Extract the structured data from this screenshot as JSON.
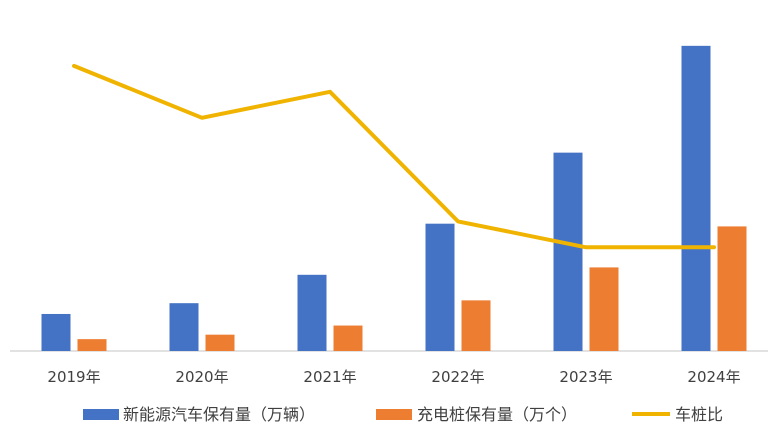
{
  "chart_data": {
    "type": "bar",
    "title": "",
    "xlabel": "",
    "ylabel": "",
    "categories": [
      "2019年",
      "2020年",
      "2021年",
      "2022年",
      "2023年",
      "2024年"
    ],
    "series": [
      {
        "name": "新能源汽车保有量（万辆）",
        "type": "bar",
        "color": "#4472C4",
        "values": [
          381,
          492,
          784,
          1310,
          2041,
          3140
        ]
      },
      {
        "name": "充电桩保有量（万个）",
        "type": "bar",
        "color": "#ED7D31",
        "values": [
          122,
          168,
          262,
          521,
          860,
          1282
        ]
      },
      {
        "name": "车桩比",
        "type": "line",
        "color": "#F0B400",
        "values": [
          3.1,
          2.9,
          3.0,
          2.5,
          2.4,
          2.4
        ]
      }
    ],
    "axes": {
      "bar_ylim": [
        0,
        3200
      ],
      "line_ylim": [
        2.0,
        3.2
      ],
      "grid": false,
      "legend_position": "bottom"
    }
  }
}
